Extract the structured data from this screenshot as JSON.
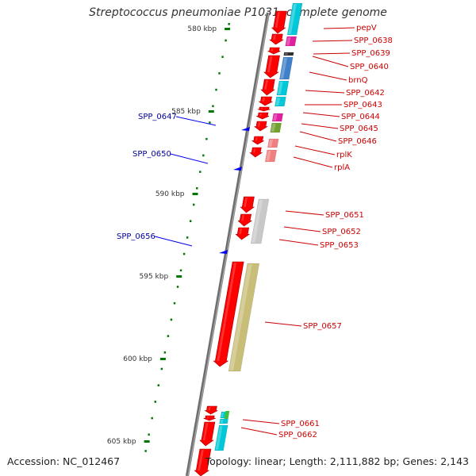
{
  "title": "Streptococcus pneumoniae P1031, complete genome",
  "accession": "Accession: NC_012467",
  "stats": "Topology: linear; Length: 2,111,882 bp; Genes: 2,143",
  "colors": {
    "backbone": "#808080",
    "forward_gene": "#ff0000",
    "gene_label": "#cc0000",
    "marker_label": "#000099",
    "marker": "#0000ee",
    "tick": "#007700"
  },
  "scale_labels": [
    "580 kbp",
    "585 kbp",
    "590 kbp",
    "595 kbp",
    "600 kbp",
    "605 kbp"
  ],
  "markers": [
    {
      "label": "SPP_0647",
      "icon": "blue-triangle-marker-icon"
    },
    {
      "label": "SPP_0650",
      "icon": "blue-triangle-marker-icon"
    },
    {
      "label": "SPP_0656",
      "icon": "blue-triangle-marker-icon"
    }
  ],
  "gene_labels": [
    "pepV",
    "SPP_0638",
    "SPP_0639",
    "SPP_0640",
    "brnQ",
    "SPP_0642",
    "SPP_0643",
    "SPP_0644",
    "SPP_0645",
    "SPP_0646",
    "rplK",
    "rplA",
    "SPP_0651",
    "SPP_0652",
    "SPP_0653",
    "SPP_0657",
    "SPP_0661",
    "SPP_0662"
  ]
}
